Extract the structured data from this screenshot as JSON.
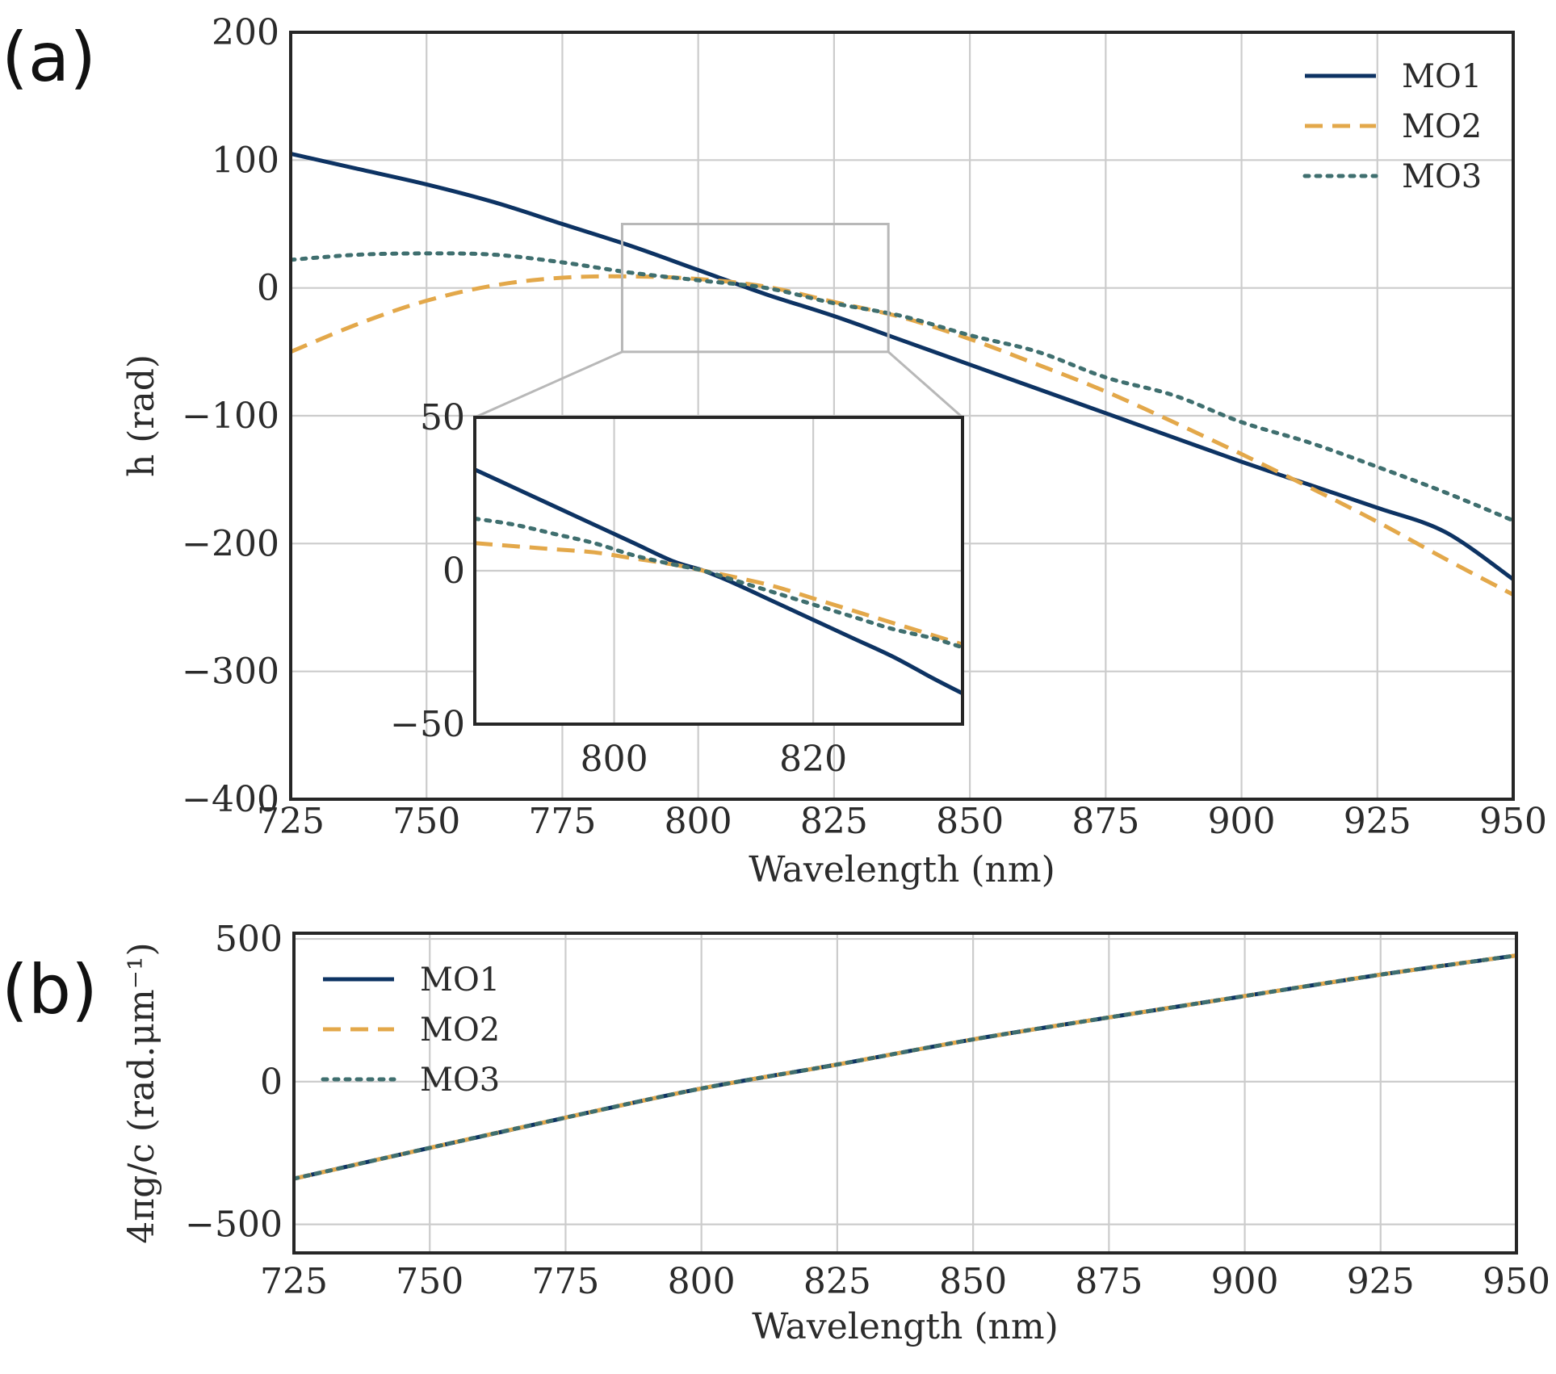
{
  "colors": {
    "MO1": "#0d3363",
    "MO2": "#e3a84a",
    "MO3": "#3f6f6f",
    "grid": "#cccccc",
    "frame": "#262626",
    "zoom_box": "#b8b8b8"
  },
  "chart_data": [
    {
      "panel": "(a)",
      "type": "line",
      "title": "",
      "xlabel": "Wavelength (nm)",
      "ylabel": "h (rad)",
      "xlim": [
        725,
        950
      ],
      "ylim": [
        -400,
        200
      ],
      "xticks": [
        725,
        750,
        775,
        800,
        825,
        850,
        875,
        900,
        925,
        950
      ],
      "yticks": [
        -400,
        -300,
        -200,
        -100,
        0,
        100,
        200
      ],
      "ytick_labels": [
        "−400",
        "−300",
        "−200",
        "−100",
        "0",
        "100",
        "200"
      ],
      "grid": true,
      "legend_position": "top-right",
      "x": [
        725,
        737.5,
        750,
        762.5,
        775,
        787.5,
        800,
        812.5,
        825,
        837.5,
        850,
        862.5,
        875,
        887.5,
        900,
        912.5,
        925,
        937.5,
        950
      ],
      "series": [
        {
          "name": "MO1",
          "style": "solid",
          "values": [
            105,
            93,
            81,
            67,
            50,
            33,
            14,
            -5,
            -22,
            -41,
            -60,
            -79,
            -98,
            -117,
            -136,
            -154,
            -172,
            -191,
            -228
          ]
        },
        {
          "name": "MO2",
          "style": "dashed",
          "values": [
            -50,
            -28,
            -10,
            2,
            8,
            9,
            7,
            1,
            -11,
            -23,
            -40,
            -60,
            -81,
            -105,
            -130,
            -156,
            -183,
            -212,
            -240
          ]
        },
        {
          "name": "MO3",
          "style": "dotted",
          "values": [
            22,
            26,
            27,
            26,
            20,
            12,
            6,
            0,
            -12,
            -22,
            -37,
            -50,
            -70,
            -84,
            -105,
            -121,
            -140,
            -160,
            -182
          ]
        }
      ],
      "inset": {
        "xlim": [
          786,
          835
        ],
        "ylim": [
          -50,
          50
        ],
        "xticks": [
          800,
          820
        ],
        "yticks": [
          -50,
          0,
          50
        ],
        "ytick_labels": [
          "−50",
          "0",
          "50"
        ],
        "zoom_box": {
          "x": [
            786,
            835
          ],
          "y": [
            -50,
            50
          ]
        },
        "x": [
          786,
          790,
          794,
          798,
          802,
          806,
          809,
          812,
          816,
          820,
          824,
          828,
          832,
          835
        ],
        "series": [
          {
            "name": "MO1",
            "values": [
              33,
              27,
              21,
              15,
              9,
              3,
              0,
              -4,
              -10,
              -16,
              -22,
              -28,
              -35,
              -40
            ]
          },
          {
            "name": "MO2",
            "values": [
              9,
              8,
              7,
              6,
              4,
              2,
              0,
              -2,
              -5,
              -9,
              -13,
              -17,
              -21,
              -24
            ]
          },
          {
            "name": "MO3",
            "values": [
              17,
              15,
              12,
              9,
              5,
              2,
              0,
              -3,
              -7,
              -11,
              -15,
              -19,
              -22,
              -25
            ]
          }
        ]
      }
    },
    {
      "panel": "(b)",
      "type": "line",
      "title": "",
      "xlabel": "Wavelength (nm)",
      "ylabel": "4πg/c (rad.μm⁻¹)",
      "xlim": [
        725,
        950
      ],
      "ylim": [
        -600,
        520
      ],
      "xticks": [
        725,
        750,
        775,
        800,
        825,
        850,
        875,
        900,
        925,
        950
      ],
      "yticks": [
        -500,
        0,
        500
      ],
      "ytick_labels": [
        "−500",
        "0",
        "500"
      ],
      "grid": true,
      "legend_position": "top-left",
      "x": [
        725,
        750,
        775,
        800,
        825,
        850,
        875,
        900,
        925,
        950
      ],
      "series": [
        {
          "name": "MO1",
          "style": "solid",
          "values": [
            -340,
            -232,
            -126,
            -24,
            60,
            148,
            225,
            300,
            375,
            442
          ]
        },
        {
          "name": "MO2",
          "style": "dashed",
          "values": [
            -340,
            -232,
            -126,
            -24,
            60,
            148,
            225,
            300,
            375,
            442
          ]
        },
        {
          "name": "MO3",
          "style": "dotted",
          "values": [
            -340,
            -232,
            -126,
            -24,
            60,
            148,
            225,
            300,
            375,
            442
          ]
        }
      ]
    }
  ]
}
